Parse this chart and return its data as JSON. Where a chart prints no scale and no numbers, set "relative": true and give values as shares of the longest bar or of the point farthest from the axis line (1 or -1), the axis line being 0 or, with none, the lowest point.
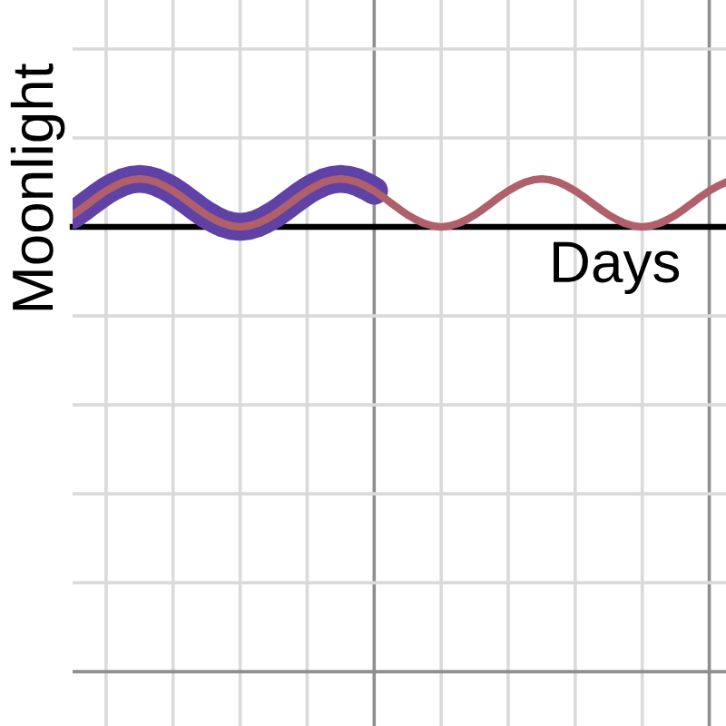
{
  "chart_data": {
    "type": "line",
    "xlabel": "Days",
    "ylabel": "Moonlight",
    "relative": true,
    "grid": true,
    "line_style": "solid",
    "categories": [
      null,
      null,
      null,
      null,
      null,
      null,
      null,
      null,
      null,
      null,
      null,
      null,
      null,
      null,
      null,
      null,
      null,
      null,
      null,
      null,
      null,
      null,
      null,
      null,
      null,
      null,
      null,
      null,
      null,
      null,
      null,
      null,
      null,
      null,
      null,
      null,
      null,
      null,
      null,
      null,
      null,
      null,
      null,
      null,
      null,
      null,
      null,
      null,
      null,
      null,
      null,
      null,
      null,
      null,
      null,
      null,
      null,
      null,
      null,
      null,
      null,
      null,
      null,
      null,
      null,
      null,
      null,
      null,
      null,
      null,
      null,
      null,
      null,
      null,
      null,
      null,
      null,
      null,
      null
    ],
    "series": [
      {
        "color": "#6042a6",
        "values": [
          0.25,
          0.37,
          0.5,
          0.63,
          0.75,
          0.85,
          0.93,
          0.98,
          1,
          0.98,
          0.93,
          0.85,
          0.75,
          0.63,
          0.5,
          0.37,
          0.25,
          0.15,
          0.07,
          0.02,
          0,
          0.02,
          0.07,
          0.15,
          0.25,
          0.37,
          0.5,
          0.63,
          0.75,
          0.85,
          0.93,
          0.98,
          1,
          0.98,
          0.93,
          0.85,
          0.75,
          null,
          null,
          null,
          null,
          null,
          null,
          null,
          null,
          null,
          null,
          null,
          null,
          null,
          null,
          null,
          null,
          null,
          null,
          null,
          null,
          null,
          null,
          null,
          null,
          null,
          null,
          null,
          null,
          null,
          null,
          null,
          null,
          null,
          null,
          null,
          null,
          null,
          null,
          null,
          null,
          null,
          null
        ]
      },
      {
        "color": "#b0606a",
        "values": [
          0.25,
          0.37,
          0.5,
          0.63,
          0.75,
          0.85,
          0.93,
          0.98,
          1,
          0.98,
          0.93,
          0.85,
          0.75,
          0.63,
          0.5,
          0.37,
          0.25,
          0.15,
          0.07,
          0.02,
          0,
          0.02,
          0.07,
          0.15,
          0.25,
          0.37,
          0.5,
          0.63,
          0.75,
          0.85,
          0.93,
          0.98,
          1,
          0.98,
          0.93,
          0.85,
          0.75,
          0.63,
          0.5,
          0.37,
          0.25,
          0.15,
          0.07,
          0.02,
          0,
          0.02,
          0.07,
          0.15,
          0.25,
          0.37,
          0.5,
          0.63,
          0.75,
          0.85,
          0.93,
          0.98,
          1,
          0.98,
          0.93,
          0.85,
          0.75,
          0.63,
          0.5,
          0.37,
          0.25,
          0.15,
          0.07,
          0.02,
          0,
          0.02,
          0.07,
          0.15,
          0.25,
          0.37,
          0.5,
          0.63,
          0.75,
          0.85,
          0.93
        ]
      }
    ]
  }
}
